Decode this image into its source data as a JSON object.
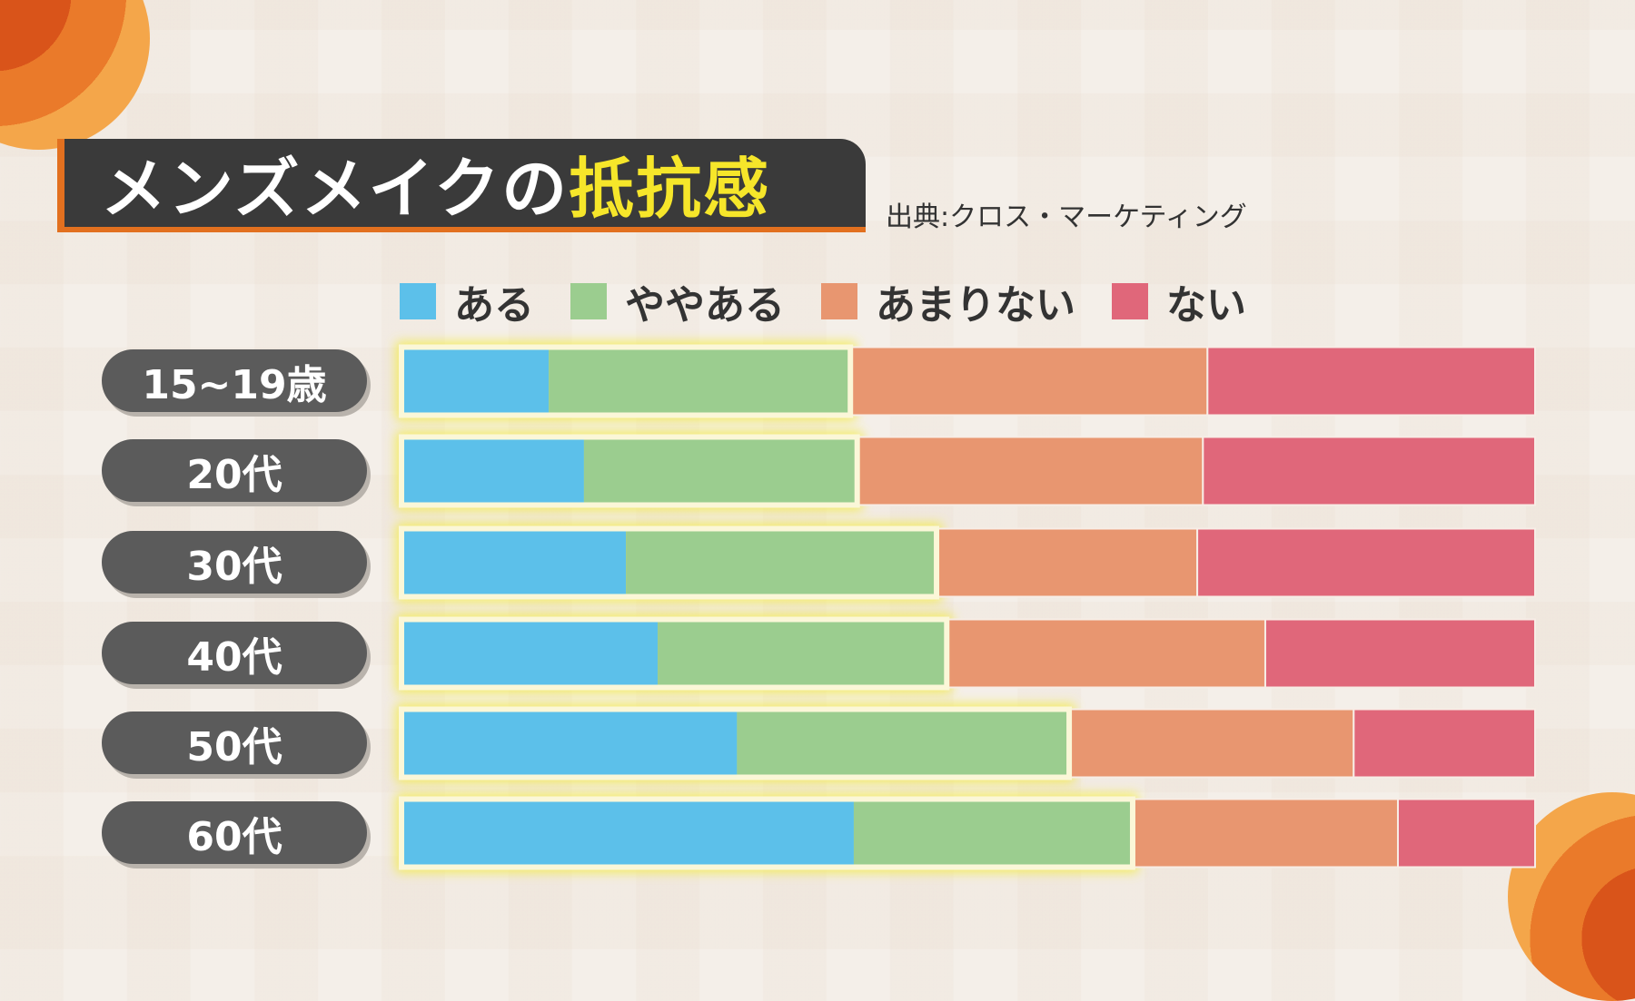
{
  "title": {
    "main": "メンズメイクの",
    "highlight": "抵抗感"
  },
  "source": "出典:クロス・マーケティング",
  "chart_data": {
    "type": "bar",
    "orientation": "horizontal",
    "stacked": true,
    "normalized_percent": true,
    "categories": [
      "15~19歳",
      "20代",
      "30代",
      "40代",
      "50代",
      "60代"
    ],
    "series": [
      {
        "name": "ある",
        "color": "#5cc0ea",
        "values": [
          13.0,
          16.1,
          19.8,
          22.6,
          29.6,
          39.9
        ]
      },
      {
        "name": "ややある",
        "color": "#9bcd8f",
        "values": [
          26.6,
          24.1,
          27.4,
          25.5,
          29.3,
          24.6
        ]
      },
      {
        "name": "あまりない",
        "color": "#e89670",
        "values": [
          31.5,
          30.5,
          23.0,
          28.1,
          25.1,
          23.4
        ]
      },
      {
        "name": "ない",
        "color": "#e0677a",
        "values": [
          28.9,
          29.3,
          29.8,
          23.8,
          16.0,
          12.1
        ]
      }
    ],
    "highlight": "ある+ややある outlined with yellow glow",
    "legend_placement": "top",
    "grid": false,
    "xlim": [
      0,
      100
    ]
  }
}
